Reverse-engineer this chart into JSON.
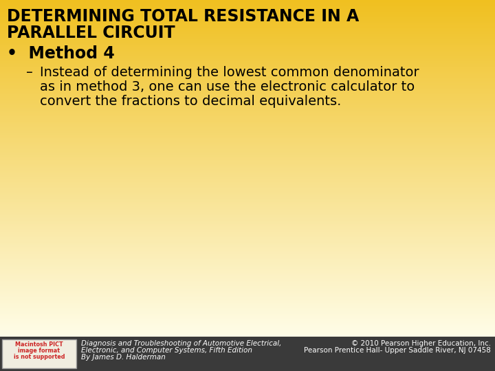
{
  "title_line1": "DETERMINING TOTAL RESISTANCE IN A",
  "title_line2": "PARALLEL CIRCUIT",
  "bullet_header": "Method 4",
  "bullet_text_line1": "Instead of determining the lowest common denominator",
  "bullet_text_line2": "as in method 3, one can use the electronic calculator to",
  "bullet_text_line3": "convert the fractions to decimal equivalents.",
  "bg_color_top": "#F0C020",
  "bg_color_bottom": "#FFFDE8",
  "footer_bg_color": "#3A3A3A",
  "footer_left_text1": "Diagnosis and Troubleshooting of Automotive Electrical,",
  "footer_left_text2": "Electronic, and Computer Systems, Fifth Edition",
  "footer_left_text3": "By James D. Halderman",
  "footer_right_text1": "© 2010 Pearson Higher Education, Inc.",
  "footer_right_text2": "Pearson Prentice Hall- Upper Saddle River, NJ 07458",
  "text_color": "#000000",
  "footer_text_color": "#FFFFFF",
  "title_fontsize": 17,
  "bullet_header_fontsize": 17,
  "bullet_text_fontsize": 14,
  "footer_fontsize": 7.5,
  "logo_text_color": "#CC2222",
  "logo_bg_color": "#F0EDE0",
  "logo_border_color": "#999999"
}
